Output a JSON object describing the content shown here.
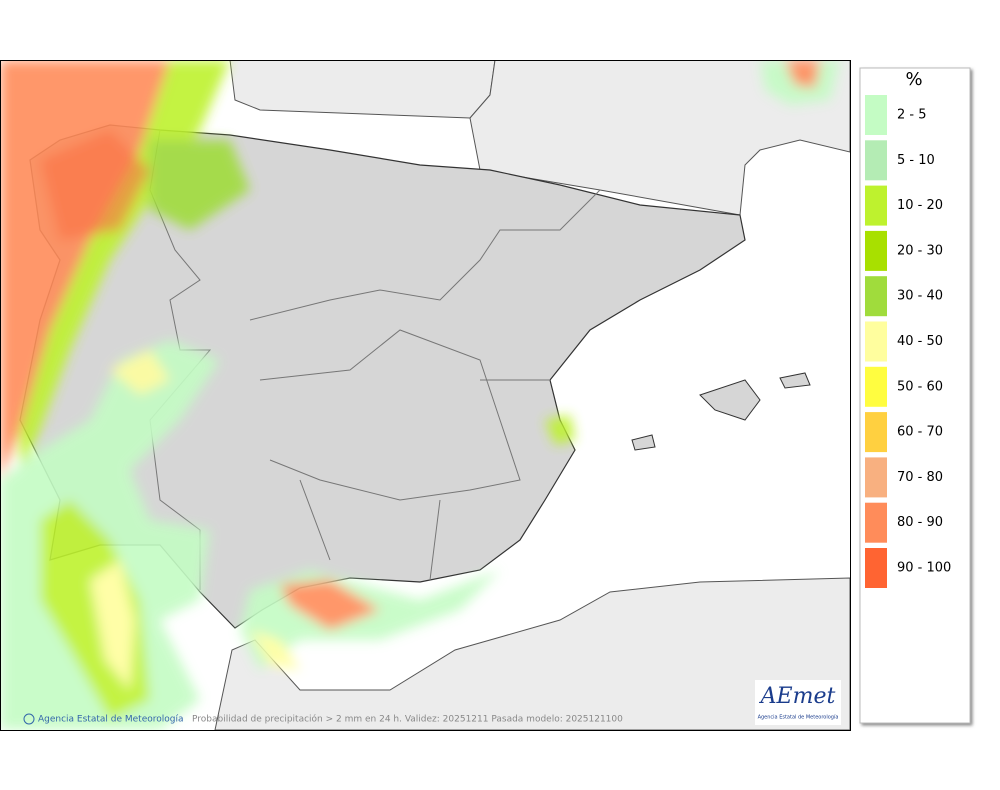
{
  "legend": {
    "title": "%",
    "items": [
      {
        "label": "2 - 5",
        "color": "#c4fcc4"
      },
      {
        "label": "5 - 10",
        "color": "#b4ecb4"
      },
      {
        "label": "10 - 20",
        "color": "#bef22e"
      },
      {
        "label": "20 - 30",
        "color": "#a8e000"
      },
      {
        "label": "30 - 40",
        "color": "#a0dc3c"
      },
      {
        "label": "40 - 50",
        "color": "#fffe9e"
      },
      {
        "label": "50 - 60",
        "color": "#fffd40"
      },
      {
        "label": "60 - 70",
        "color": "#ffd040"
      },
      {
        "label": "70 - 80",
        "color": "#f8b080"
      },
      {
        "label": "80 - 90",
        "color": "#ff8c5a"
      },
      {
        "label": "90 - 100",
        "color": "#ff6432"
      }
    ]
  },
  "footer": {
    "credit": "Agencia Estatal de Meteorología",
    "caption": "Probabilidad de precipitación > 2 mm en 24 h. Validez: 20251211 Pasada modelo: 2025121100"
  },
  "logo": {
    "name": "AEmet",
    "subtitle": "Agencia Estatal de Meteorología"
  }
}
